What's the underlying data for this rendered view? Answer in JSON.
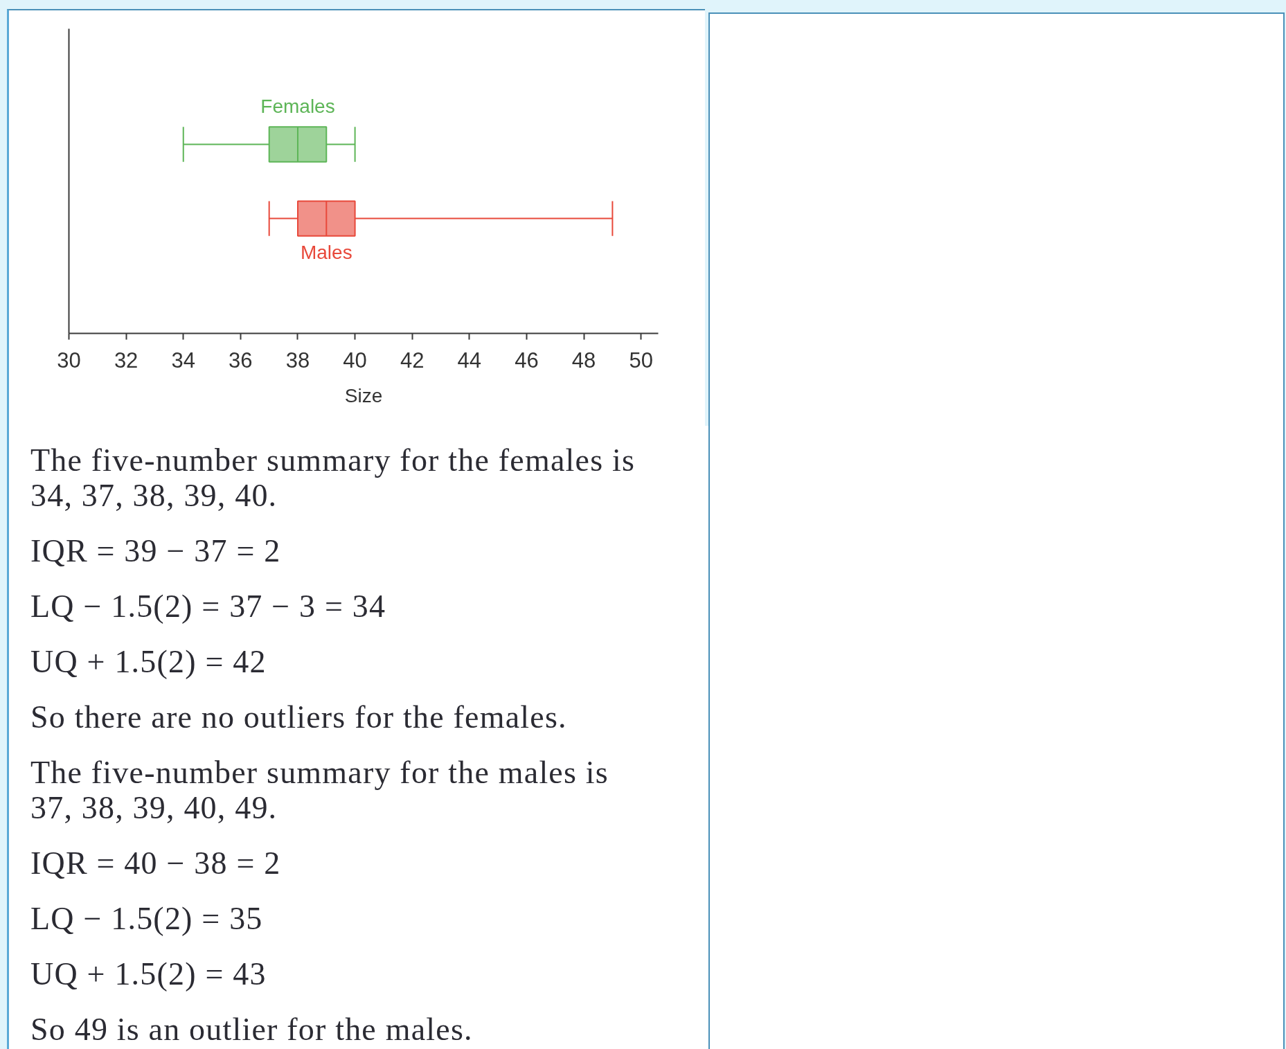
{
  "chart_data": {
    "type": "box",
    "orientation": "horizontal",
    "categories": [
      null,
      null
    ],
    "xlabel": "Size",
    "tick_labels": "x",
    "xlim": [
      30,
      50.6
    ],
    "xticks": [
      30,
      32,
      34,
      36,
      38,
      40,
      42,
      44,
      46,
      48,
      50
    ],
    "series": [
      {
        "name": "Females",
        "color": "#5db557",
        "boxes": [
          {
            "low": 34,
            "q1": 37,
            "median": 38,
            "q3": 39,
            "high": 40
          },
          null
        ]
      },
      {
        "name": "Males",
        "color": "#e8483a",
        "boxes": [
          null,
          {
            "low": 37,
            "q1": 38,
            "median": 39,
            "q3": 40,
            "high": 49
          }
        ]
      }
    ],
    "annotations": [
      "The five-number summary for the females is 34, 37, 38, 39, 40.",
      "IQR = 39 − 37 = 2",
      "LQ − 1.5(2) = 37 − 3 = 34",
      "UQ + 1.5(2) = 42",
      "So there are no outliers for the females.",
      "The five-number summary for the males is 37, 38, 39, 40, 49.",
      "IQR = 40 − 38 = 2",
      "LQ − 1.5(2) = 35",
      "UQ + 1.5(2) = 43",
      "So 49 is an outlier for the males."
    ]
  }
}
